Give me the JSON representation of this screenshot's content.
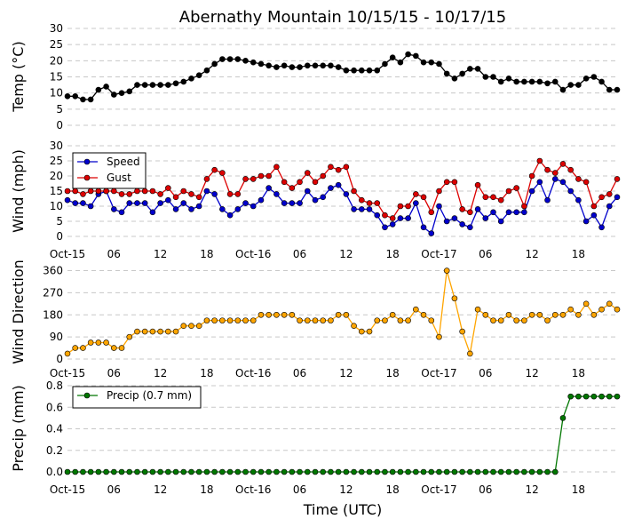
{
  "figure": {
    "title": "Abernathy Mountain 10/15/15 - 10/17/15",
    "xlabel": "Time (UTC)"
  },
  "x_tick_labels": [
    "Oct-15",
    "06",
    "12",
    "18",
    "Oct-16",
    "06",
    "12",
    "18",
    "Oct-17",
    "06",
    "12",
    "18"
  ],
  "colors": {
    "temp": "#000000",
    "speed": "#0000cc",
    "gust": "#dd0000",
    "dir": "#ffa500",
    "precip": "#007700"
  },
  "chart_data": [
    {
      "type": "line",
      "name": "temp",
      "ylabel": "Temp (°C)",
      "ylim": [
        0,
        30
      ],
      "y_ticks": [
        0,
        5,
        10,
        15,
        20,
        25,
        30
      ],
      "x_hours": [
        0,
        1,
        2,
        3,
        4,
        5,
        6,
        7,
        8,
        9,
        10,
        11,
        12,
        13,
        14,
        15,
        16,
        17,
        18,
        19,
        20,
        21,
        22,
        23,
        24,
        25,
        26,
        27,
        28,
        29,
        30,
        31,
        32,
        33,
        34,
        35,
        36,
        37,
        38,
        39,
        40,
        41,
        42,
        43,
        44,
        45,
        46,
        47,
        48,
        49,
        50,
        51,
        52,
        53,
        54,
        55,
        56,
        57,
        58,
        59,
        60,
        61,
        62,
        63,
        64,
        65,
        66,
        67,
        68,
        69,
        70,
        71
      ],
      "series": [
        {
          "name": "Temp",
          "color_key": "temp",
          "values": [
            9,
            9,
            8,
            8,
            11,
            12,
            9.5,
            10,
            10.5,
            12.5,
            12.5,
            12.5,
            12.5,
            12.5,
            13,
            13.5,
            14.5,
            15.5,
            17,
            19,
            20.5,
            20.5,
            20.5,
            20,
            19.5,
            19,
            18.5,
            18,
            18.5,
            18,
            18,
            18.5,
            18.5,
            18.5,
            18.5,
            18,
            17,
            17,
            17,
            17,
            17,
            19,
            21,
            19.5,
            22,
            21.5,
            19.5,
            19.5,
            19,
            16,
            14.5,
            16,
            17.5,
            17.5,
            15,
            15,
            13.5,
            14.5,
            13.5,
            13.5,
            13.5,
            13.5,
            13,
            13.5,
            11,
            12.5,
            12.5,
            14.5,
            15,
            13.5,
            11,
            11
          ]
        }
      ]
    },
    {
      "type": "line",
      "name": "wind",
      "ylabel": "Wind (mph)",
      "ylim": [
        0,
        30
      ],
      "y_ticks": [
        0,
        5,
        10,
        15,
        20,
        25,
        30
      ],
      "x_hours": [
        0,
        1,
        2,
        3,
        4,
        5,
        6,
        7,
        8,
        9,
        10,
        11,
        12,
        13,
        14,
        15,
        16,
        17,
        18,
        19,
        20,
        21,
        22,
        23,
        24,
        25,
        26,
        27,
        28,
        29,
        30,
        31,
        32,
        33,
        34,
        35,
        36,
        37,
        38,
        39,
        40,
        41,
        42,
        43,
        44,
        45,
        46,
        47,
        48,
        49,
        50,
        51,
        52,
        53,
        54,
        55,
        56,
        57,
        58,
        59,
        60,
        61,
        62,
        63,
        64,
        65,
        66,
        67,
        68,
        69,
        70,
        71
      ],
      "legend": [
        "Speed",
        "Gust"
      ],
      "series": [
        {
          "name": "Speed",
          "color_key": "speed",
          "values": [
            12,
            11,
            11,
            10,
            14,
            15,
            9,
            8,
            11,
            11,
            11,
            8,
            11,
            12,
            9,
            11,
            9,
            10,
            15,
            14,
            9,
            7,
            9,
            11,
            10,
            12,
            16,
            14,
            11,
            11,
            11,
            15,
            12,
            13,
            16,
            17,
            14,
            9,
            9,
            9,
            7,
            3,
            4,
            6,
            6,
            11,
            3,
            1,
            10,
            5,
            6,
            4,
            3,
            9,
            6,
            8,
            5,
            8,
            8,
            8,
            15,
            18,
            12,
            19,
            18,
            15,
            12,
            5,
            7,
            3,
            10,
            13
          ]
        },
        {
          "name": "Gust",
          "color_key": "gust",
          "values": [
            15,
            15,
            14,
            15,
            15,
            15,
            15,
            14,
            14,
            15,
            15,
            15,
            14,
            16,
            13,
            15,
            14,
            13,
            19,
            22,
            21,
            14,
            14,
            19,
            19,
            20,
            20,
            23,
            18,
            16,
            18,
            21,
            18,
            20,
            23,
            22,
            23,
            15,
            12,
            11,
            11,
            7,
            6,
            10,
            10,
            14,
            13,
            8,
            15,
            18,
            18,
            9,
            8,
            17,
            13,
            13,
            12,
            15,
            16,
            10,
            20,
            25,
            22,
            21,
            24,
            22,
            19,
            18,
            10,
            13,
            14,
            19
          ]
        }
      ]
    },
    {
      "type": "line",
      "name": "direction",
      "ylabel": "Wind Direction",
      "ylim": [
        0,
        380
      ],
      "y_ticks": [
        0,
        90,
        180,
        270,
        360
      ],
      "x_hours": [
        0,
        1,
        2,
        3,
        4,
        5,
        6,
        7,
        8,
        9,
        10,
        11,
        12,
        13,
        14,
        15,
        16,
        17,
        18,
        19,
        20,
        21,
        22,
        23,
        24,
        25,
        26,
        27,
        28,
        29,
        30,
        31,
        32,
        33,
        34,
        35,
        36,
        37,
        38,
        39,
        40,
        41,
        42,
        43,
        44,
        45,
        46,
        47,
        48,
        49,
        50,
        51,
        52,
        53,
        54,
        55,
        56,
        57,
        58,
        59,
        60,
        61,
        62,
        63,
        64,
        65,
        66,
        67,
        68,
        69,
        70,
        71
      ],
      "series": [
        {
          "name": "Wind Direction",
          "color_key": "dir",
          "values": [
            22,
            45,
            45,
            67,
            67,
            67,
            45,
            45,
            90,
            112,
            112,
            112,
            112,
            112,
            112,
            135,
            135,
            135,
            157,
            157,
            157,
            157,
            157,
            157,
            157,
            180,
            180,
            180,
            180,
            180,
            157,
            157,
            157,
            157,
            157,
            180,
            180,
            135,
            112,
            112,
            157,
            157,
            180,
            157,
            157,
            202,
            180,
            157,
            90,
            360,
            247,
            112,
            22,
            202,
            180,
            157,
            157,
            180,
            157,
            157,
            180,
            180,
            157,
            180,
            180,
            202,
            180,
            225,
            180,
            202,
            225,
            202
          ]
        }
      ]
    },
    {
      "type": "line",
      "name": "precip",
      "ylabel": "Precip (mm)",
      "ylim": [
        0,
        0.8
      ],
      "y_ticks": [
        0.0,
        0.2,
        0.4,
        0.6,
        0.8
      ],
      "y_tick_labels": [
        "0.0",
        "0.2",
        "0.4",
        "0.6",
        "0.8"
      ],
      "x_hours": [
        0,
        1,
        2,
        3,
        4,
        5,
        6,
        7,
        8,
        9,
        10,
        11,
        12,
        13,
        14,
        15,
        16,
        17,
        18,
        19,
        20,
        21,
        22,
        23,
        24,
        25,
        26,
        27,
        28,
        29,
        30,
        31,
        32,
        33,
        34,
        35,
        36,
        37,
        38,
        39,
        40,
        41,
        42,
        43,
        44,
        45,
        46,
        47,
        48,
        49,
        50,
        51,
        52,
        53,
        54,
        55,
        56,
        57,
        58,
        59,
        60,
        61,
        62,
        63,
        64,
        65,
        66,
        67,
        68,
        69,
        70,
        71
      ],
      "legend": [
        "Precip (0.7 mm)"
      ],
      "series": [
        {
          "name": "Precip (0.7 mm)",
          "color_key": "precip",
          "values": [
            0,
            0,
            0,
            0,
            0,
            0,
            0,
            0,
            0,
            0,
            0,
            0,
            0,
            0,
            0,
            0,
            0,
            0,
            0,
            0,
            0,
            0,
            0,
            0,
            0,
            0,
            0,
            0,
            0,
            0,
            0,
            0,
            0,
            0,
            0,
            0,
            0,
            0,
            0,
            0,
            0,
            0,
            0,
            0,
            0,
            0,
            0,
            0,
            0,
            0,
            0,
            0,
            0,
            0,
            0,
            0,
            0,
            0,
            0,
            0,
            0,
            0,
            0,
            0,
            0.5,
            0.7,
            0.7,
            0.7,
            0.7,
            0.7,
            0.7,
            0.7
          ]
        }
      ]
    }
  ]
}
